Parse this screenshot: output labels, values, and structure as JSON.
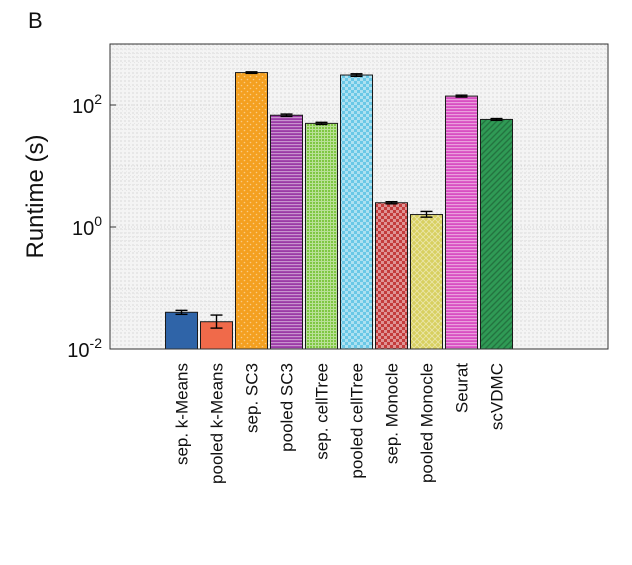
{
  "panel_label": "B",
  "chart_data": {
    "type": "bar",
    "title": "",
    "xlabel": "",
    "ylabel": "Runtime (s)",
    "yscale": "log",
    "ylim": [
      0.01,
      1000
    ],
    "yticks": [
      {
        "value": 0.01,
        "base": "10",
        "exp": "-2"
      },
      {
        "value": 1,
        "base": "10",
        "exp": "0"
      },
      {
        "value": 100,
        "base": "10",
        "exp": "2"
      }
    ],
    "grid": true,
    "categories": [
      "sep. k-Means",
      "pooled k-Means",
      "sep. SC3",
      "pooled SC3",
      "sep. cellTree",
      "pooled cellTree",
      "sep. Monocle",
      "pooled Monocle",
      "Seurat",
      "scVDMC"
    ],
    "values": [
      0.04,
      0.028,
      340,
      68,
      50,
      310,
      2.5,
      1.6,
      140,
      58
    ],
    "error_low": [
      0.037,
      0.022,
      330,
      65,
      48,
      295,
      2.4,
      1.45,
      135,
      56
    ],
    "error_high": [
      0.043,
      0.036,
      350,
      71,
      52,
      325,
      2.6,
      1.8,
      145,
      60
    ],
    "colors": [
      "#2f64a8",
      "#f06a4a",
      "#f4a020",
      "#9b3aa6",
      "#7fc742",
      "#69c8e6",
      "#c43c3c",
      "#d8d060",
      "#d84ec2",
      "#2f9a55"
    ],
    "patterns": [
      "solid",
      "solid",
      "dots",
      "hstripes",
      "grid",
      "checks",
      "checks",
      "hatch",
      "hstripes",
      "diag"
    ]
  }
}
